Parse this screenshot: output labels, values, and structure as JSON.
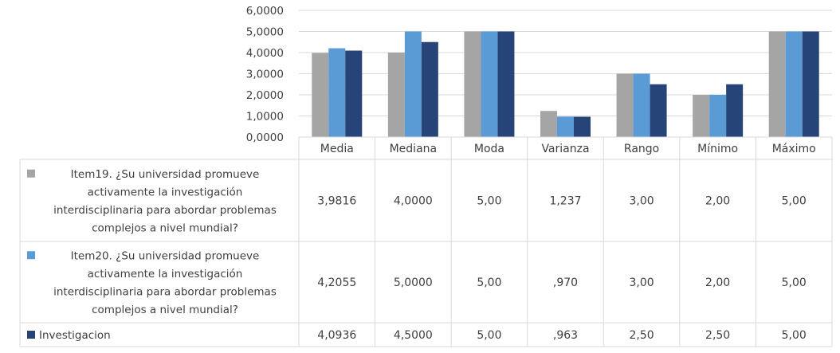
{
  "chart_data": {
    "type": "bar",
    "categories": [
      "Media",
      "Mediana",
      "Moda",
      "Varianza",
      "Rango",
      "Mínimo",
      "Máximo"
    ],
    "ylim": [
      0,
      6
    ],
    "y_ticks": [
      "0,0000",
      "1,0000",
      "2,0000",
      "3,0000",
      "4,0000",
      "5,0000",
      "6,0000"
    ],
    "grid": true,
    "legend_placement": "data-table",
    "series": [
      {
        "name": "Item19. ¿Su universidad promueve activamente la investigación interdisciplinaria para abordar problemas complejos a nivel mundial?",
        "legend_lines": [
          "Item19. ¿Su universidad promueve",
          "activamente la investigación",
          "interdisciplinaria para abordar problemas",
          "complejos a nivel mundial?"
        ],
        "color": "#a5a5a5",
        "values": [
          3.9816,
          4.0,
          5.0,
          1.237,
          3.0,
          2.0,
          5.0
        ],
        "labels": [
          "3,9816",
          "4,0000",
          "5,00",
          "1,237",
          "3,00",
          "2,00",
          "5,00"
        ]
      },
      {
        "name": "Item20. ¿Su universidad promueve activamente la investigación interdisciplinaria para abordar problemas complejos a nivel mundial?",
        "legend_lines": [
          "Item20. ¿Su universidad promueve",
          "activamente la investigación",
          "interdisciplinaria para abordar problemas",
          "complejos a nivel mundial?"
        ],
        "color": "#5b9bd5",
        "values": [
          4.2055,
          5.0,
          5.0,
          0.97,
          3.0,
          2.0,
          5.0
        ],
        "labels": [
          "4,2055",
          "5,0000",
          "5,00",
          ",970",
          "3,00",
          "2,00",
          "5,00"
        ]
      },
      {
        "name": "Investigacion",
        "legend_lines": [
          "Investigacion"
        ],
        "color": "#264478",
        "values": [
          4.0936,
          4.5,
          5.0,
          0.963,
          2.5,
          2.5,
          5.0
        ],
        "labels": [
          "4,0936",
          "4,5000",
          "5,00",
          ",963",
          "2,50",
          "2,50",
          "5,00"
        ]
      }
    ]
  }
}
